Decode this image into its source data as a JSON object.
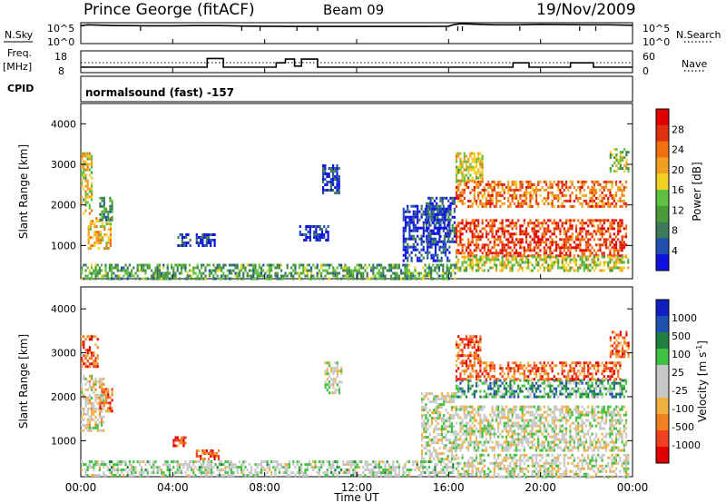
{
  "header": {
    "station": "Prince George (fitACF)",
    "beam": "Beam 09",
    "date": "19/Nov/2009"
  },
  "side_labels": {
    "nsky": "N.Sky",
    "freq": "Freq.",
    "freq_unit": "[MHz]",
    "cpid": "CPID",
    "nsearch": "N.Search",
    "nave": "Nave"
  },
  "mode_text": "normalsound (fast) -157",
  "colors": {
    "power_scale": [
      "#1010e0",
      "#2050b0",
      "#3c7a5a",
      "#4a9a3a",
      "#60c040",
      "#f0d020",
      "#f0a020",
      "#f07010",
      "#e03010",
      "#e00000"
    ],
    "velocity_scale": [
      "#e00000",
      "#f04020",
      "#f08020",
      "#f0b040",
      "#c8c8c8",
      "#c8c8c8",
      "#40c040",
      "#208040",
      "#2050b0",
      "#1020c0"
    ],
    "ground_scatter": "#c0c0c0"
  },
  "chart_data": [
    {
      "type": "line",
      "panel": "noise",
      "left_axis_label": "N.Sky",
      "right_axis_label": "N.Search",
      "left_ticks": [
        "10^5",
        "10^0"
      ],
      "right_ticks": [
        "10^5",
        "10^0"
      ],
      "x_range_hours": [
        0,
        24
      ],
      "series": [
        {
          "x": [
            0,
            0.3,
            1.0,
            1.5,
            2,
            3,
            4,
            5,
            6,
            7,
            8,
            9,
            10,
            11,
            12,
            13,
            14,
            15,
            16,
            16.2,
            16.5,
            17,
            18,
            19,
            20,
            21,
            22,
            23,
            24
          ],
          "values": [
            0.85,
            0.9,
            0.88,
            0.86,
            0.86,
            0.85,
            0.85,
            0.86,
            0.86,
            0.84,
            0.83,
            0.82,
            0.82,
            0.82,
            0.82,
            0.82,
            0.82,
            0.82,
            0.83,
            0.9,
            0.95,
            0.93,
            0.9,
            0.9,
            0.92,
            0.91,
            0.9,
            0.9,
            0.88
          ]
        }
      ]
    },
    {
      "type": "line",
      "panel": "frequency",
      "left_axis_label": "Freq. [MHz]",
      "left_ticks": [
        "18",
        "8"
      ],
      "right_axis_label": "Nave",
      "right_ticks": [
        "60",
        "0"
      ],
      "x_range_hours": [
        0,
        24
      ],
      "series": [
        {
          "name": "Freq.",
          "x": [
            0,
            1,
            5.5,
            5.5,
            6.2,
            6.2,
            8.5,
            8.5,
            8.9,
            8.9,
            9.3,
            9.3,
            9.6,
            9.6,
            10.3,
            10.3,
            18.8,
            18.8,
            19.5,
            19.5,
            21.3,
            21.3,
            22.3,
            22.3,
            24
          ],
          "values": [
            10.5,
            10.5,
            10.5,
            14.5,
            14.5,
            10.5,
            10.5,
            12.5,
            12.5,
            14.2,
            14.2,
            11,
            11,
            14.2,
            14.2,
            10.5,
            10.5,
            12.5,
            12.5,
            10.5,
            10.5,
            12.5,
            12.5,
            10.5,
            10.5
          ]
        }
      ]
    },
    {
      "type": "heatmap",
      "panel": "power",
      "ylabel": "Slant Range [km]",
      "yticks": [
        1000,
        2000,
        3000,
        4000
      ],
      "ylim": [
        180,
        4500
      ],
      "x_range_hours": [
        0,
        24
      ],
      "colorbar_label": "Power [dB]",
      "colorbar_ticks": [
        4,
        8,
        12,
        16,
        20,
        24,
        28
      ],
      "regions": [
        {
          "t0": 0.0,
          "t1": 0.5,
          "r0": 1800,
          "r1": 3300,
          "level": 0.55
        },
        {
          "t0": 0.3,
          "t1": 1.3,
          "r0": 900,
          "r1": 1700,
          "level": 0.6
        },
        {
          "t0": 0.8,
          "t1": 1.4,
          "r0": 1600,
          "r1": 2200,
          "level": 0.35
        },
        {
          "t0": 0.0,
          "t1": 16.3,
          "r0": 200,
          "r1": 550,
          "level": 0.35
        },
        {
          "t0": 4.2,
          "t1": 4.8,
          "r0": 1000,
          "r1": 1300,
          "level": 0.1
        },
        {
          "t0": 5.0,
          "t1": 5.8,
          "r0": 1000,
          "r1": 1300,
          "level": 0.1
        },
        {
          "t0": 9.5,
          "t1": 10.8,
          "r0": 1100,
          "r1": 1500,
          "level": 0.05
        },
        {
          "t0": 10.5,
          "t1": 11.2,
          "r0": 2300,
          "r1": 3000,
          "level": 0.1
        },
        {
          "t0": 14.0,
          "t1": 16.0,
          "r0": 600,
          "r1": 2000,
          "level": 0.1
        },
        {
          "t0": 15.0,
          "t1": 16.3,
          "r0": 1100,
          "r1": 2200,
          "level": 0.15
        },
        {
          "t0": 16.3,
          "t1": 23.7,
          "r0": 750,
          "r1": 1650,
          "level": 0.85
        },
        {
          "t0": 16.3,
          "t1": 23.7,
          "r0": 1950,
          "r1": 2600,
          "level": 0.75
        },
        {
          "t0": 16.3,
          "t1": 17.5,
          "r0": 2600,
          "r1": 3300,
          "level": 0.55
        },
        {
          "t0": 16.3,
          "t1": 23.8,
          "r0": 400,
          "r1": 750,
          "level": 0.5
        },
        {
          "t0": 23.0,
          "t1": 23.8,
          "r0": 2800,
          "r1": 3400,
          "level": 0.45
        }
      ]
    },
    {
      "type": "heatmap",
      "panel": "velocity",
      "ylabel": "Slant Range [km]",
      "yticks": [
        1000,
        2000,
        3000,
        4000
      ],
      "ylim": [
        180,
        4500
      ],
      "xlabel": "Time UT",
      "xticks": [
        "00:00",
        "04:00",
        "08:00",
        "12:00",
        "16:00",
        "20:00",
        "00:00"
      ],
      "x_range_hours": [
        0,
        24
      ],
      "colorbar_label": "Velocity [m s^-1]",
      "colorbar_ticks": [
        "1000",
        "500",
        "100",
        "25",
        "-25",
        "-100",
        "-500",
        "-1000"
      ],
      "regions": [
        {
          "t0": 0.0,
          "t1": 0.7,
          "r0": 2700,
          "r1": 3400,
          "level": 0.2
        },
        {
          "t0": 0.0,
          "t1": 1.0,
          "r0": 1200,
          "r1": 2500,
          "level": 0.45
        },
        {
          "t0": 0.8,
          "t1": 1.4,
          "r0": 1700,
          "r1": 2200,
          "level": 0.2
        },
        {
          "t0": 0.0,
          "t1": 16.3,
          "r0": 200,
          "r1": 550,
          "level": 0.55
        },
        {
          "t0": 4.0,
          "t1": 4.6,
          "r0": 900,
          "r1": 1100,
          "level": 0.2
        },
        {
          "t0": 5.0,
          "t1": 6.0,
          "r0": 600,
          "r1": 800,
          "level": 0.2
        },
        {
          "t0": 10.6,
          "t1": 11.3,
          "r0": 2100,
          "r1": 2800,
          "level": 0.5
        },
        {
          "t0": 14.8,
          "t1": 16.3,
          "r0": 600,
          "r1": 2100,
          "level": 0.5
        },
        {
          "t0": 16.3,
          "t1": 23.7,
          "r0": 800,
          "r1": 1800,
          "level": 0.5
        },
        {
          "t0": 16.3,
          "t1": 23.7,
          "r0": 2000,
          "r1": 2400,
          "level": 0.7
        },
        {
          "t0": 16.3,
          "t1": 23.5,
          "r0": 2400,
          "r1": 2800,
          "level": 0.2
        },
        {
          "t0": 16.3,
          "t1": 17.4,
          "r0": 2800,
          "r1": 3400,
          "level": 0.2
        },
        {
          "t0": 16.3,
          "t1": 23.8,
          "r0": 200,
          "r1": 700,
          "level": 0.5
        },
        {
          "t0": 23.0,
          "t1": 23.8,
          "r0": 2900,
          "r1": 3500,
          "level": 0.2
        }
      ]
    }
  ]
}
